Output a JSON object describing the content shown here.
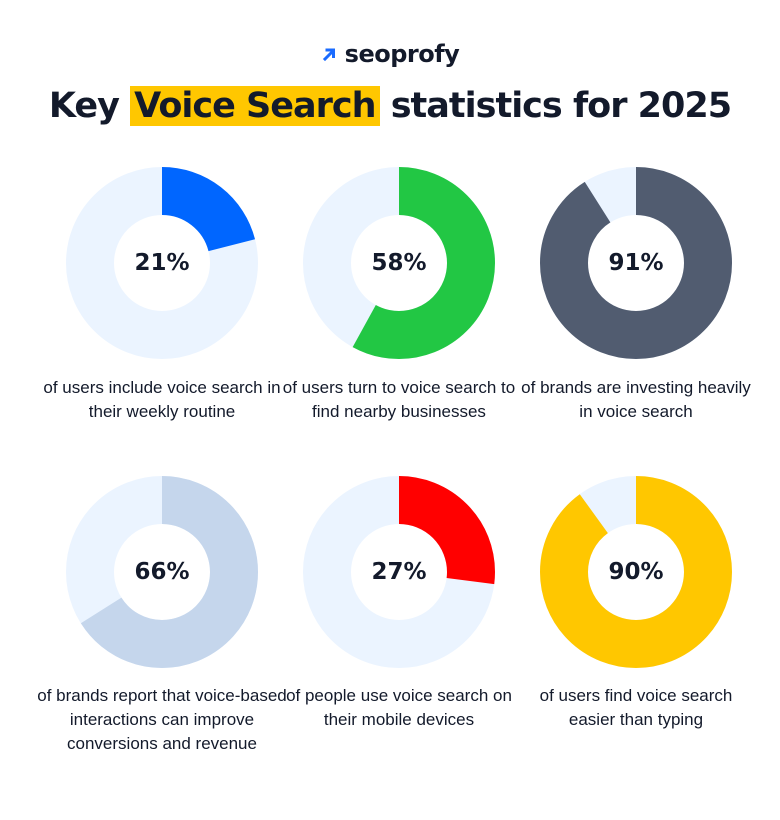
{
  "brand": {
    "name": "seoprofy",
    "icon": "arrow-up-right-icon",
    "accent": "#1a6bff"
  },
  "title": {
    "prefix": "Key ",
    "highlight": "Voice Search",
    "suffix": " statistics for 2025",
    "highlight_color": "#ffc700"
  },
  "stats": [
    {
      "value": 21,
      "label": "21%",
      "color": "#0066ff",
      "caption": "of users include voice search in their weekly routine"
    },
    {
      "value": 58,
      "label": "58%",
      "color": "#22c744",
      "caption": "of users turn to voice search to find nearby businesses"
    },
    {
      "value": 91,
      "label": "91%",
      "color": "#515c70",
      "caption": "of brands are investing heavily in voice search"
    },
    {
      "value": 66,
      "label": "66%",
      "color": "#c5d6ec",
      "caption": "of brands report that voice-based interactions can improve conversions and revenue"
    },
    {
      "value": 27,
      "label": "27%",
      "color": "#ff0000",
      "caption": "of people use voice search on their mobile devices"
    },
    {
      "value": 90,
      "label": "90%",
      "color": "#ffc700",
      "caption": "of users find voice search easier than typing"
    }
  ],
  "track_color": "#ebf4ff",
  "chart_data": {
    "type": "pie",
    "title": "Key Voice Search statistics for 2025",
    "categories": [
      "of users include voice search in their weekly routine",
      "of users turn to voice search to find nearby businesses",
      "of brands are investing heavily in voice search",
      "of brands report that voice-based interactions can improve conversions and revenue",
      "of people use voice search on their mobile devices",
      "of users find voice search easier than typing"
    ],
    "values": [
      21,
      58,
      91,
      66,
      27,
      90
    ],
    "unit": "%",
    "layout": "3x2 grid of donut charts"
  }
}
